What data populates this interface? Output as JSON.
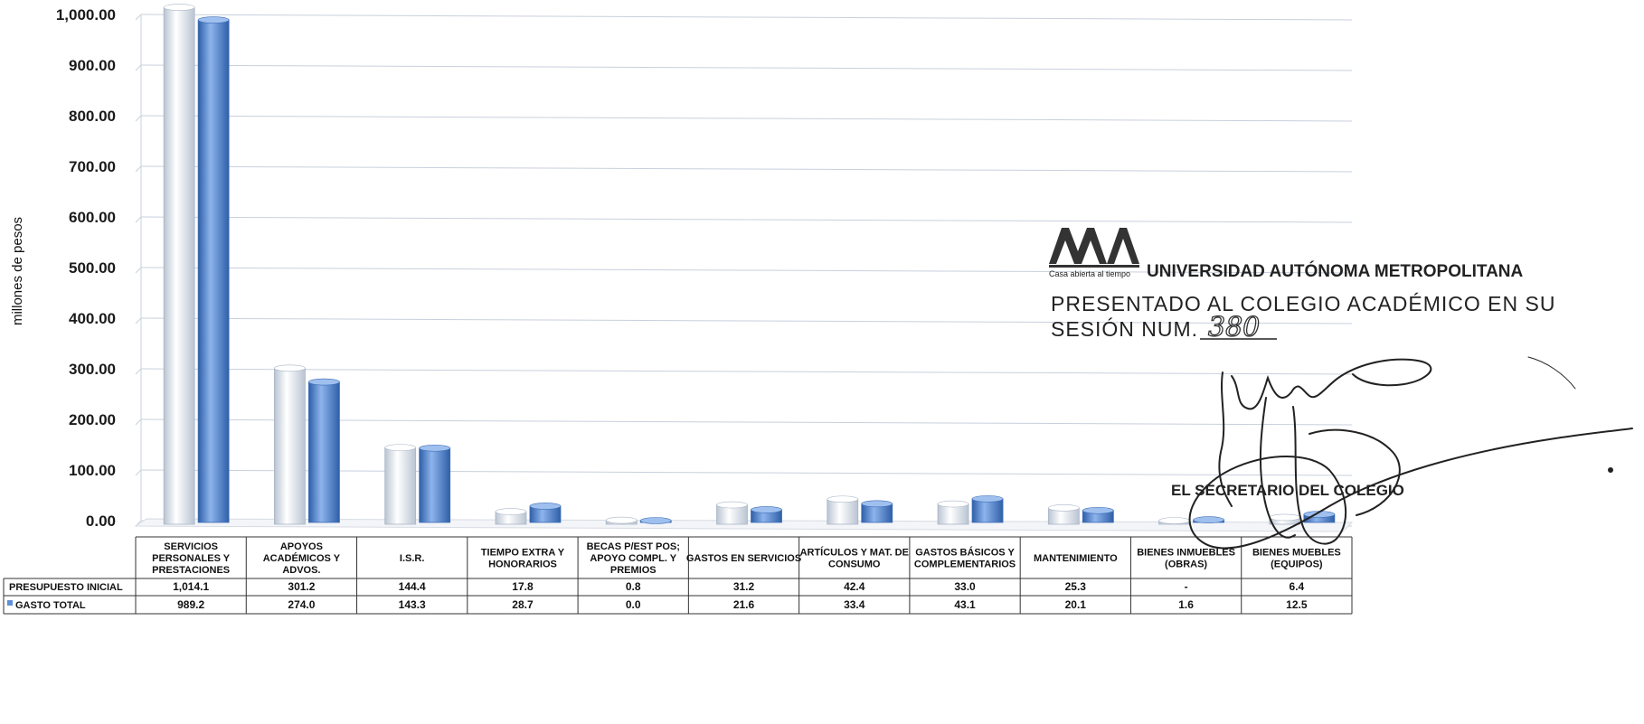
{
  "chart_data": {
    "type": "bar",
    "ylabel": "millones de pesos",
    "ylim": [
      0,
      1000
    ],
    "yticks": [
      "0.00",
      "100.00",
      "200.00",
      "300.00",
      "400.00",
      "500.00",
      "600.00",
      "700.00",
      "800.00",
      "900.00",
      "1,000.00"
    ],
    "grid": true,
    "legend": "data-table-bottom",
    "categories": [
      [
        "SERVICIOS",
        "PERSONALES Y",
        "PRESTACIONES"
      ],
      [
        "APOYOS",
        "ACADÉMICOS Y",
        "ADVOS."
      ],
      [
        "I.S.R."
      ],
      [
        "TIEMPO EXTRA Y",
        "HONORARIOS"
      ],
      [
        "BECAS P/EST POS;",
        "APOYO COMPL. Y",
        "PREMIOS"
      ],
      [
        "GASTOS EN SERVICIOS"
      ],
      [
        "ARTÍCULOS Y MAT. DE",
        "CONSUMO"
      ],
      [
        "GASTOS BÁSICOS Y",
        "COMPLEMENTARIOS"
      ],
      [
        "MANTENIMIENTO"
      ],
      [
        "BIENES INMUEBLES",
        "(OBRAS)"
      ],
      [
        "BIENES MUEBLES",
        "(EQUIPOS)"
      ]
    ],
    "series": [
      {
        "name": "PRESUPUESTO INICIAL",
        "color": "#eef2f6",
        "values": [
          1014.1,
          301.2,
          144.4,
          17.8,
          0.8,
          31.2,
          42.4,
          33.0,
          25.3,
          0,
          6.4
        ],
        "labels": [
          "1,014.1",
          "301.2",
          "144.4",
          "17.8",
          "0.8",
          "31.2",
          "42.4",
          "33.0",
          "25.3",
          "-",
          "6.4"
        ]
      },
      {
        "name": "GASTO TOTAL",
        "color": "#5f90d6",
        "values": [
          989.2,
          274.0,
          143.3,
          28.7,
          0.0,
          21.6,
          33.4,
          43.1,
          20.1,
          1.6,
          12.5
        ],
        "labels": [
          "989.2",
          "274.0",
          "143.3",
          "28.7",
          "0.0",
          "21.6",
          "33.4",
          "43.1",
          "20.1",
          "1.6",
          "12.5"
        ]
      }
    ]
  },
  "stamp": {
    "motto": "Casa abierta al tiempo",
    "university": "UNIVERSIDAD AUTÓNOMA METROPOLITANA",
    "line1": "PRESENTADO AL COLEGIO ACADÉMICO EN SU",
    "line2": "SESIÓN NUM.",
    "session_number": "380",
    "secretary": "EL SECRETARIO DEL COLEGIO"
  }
}
